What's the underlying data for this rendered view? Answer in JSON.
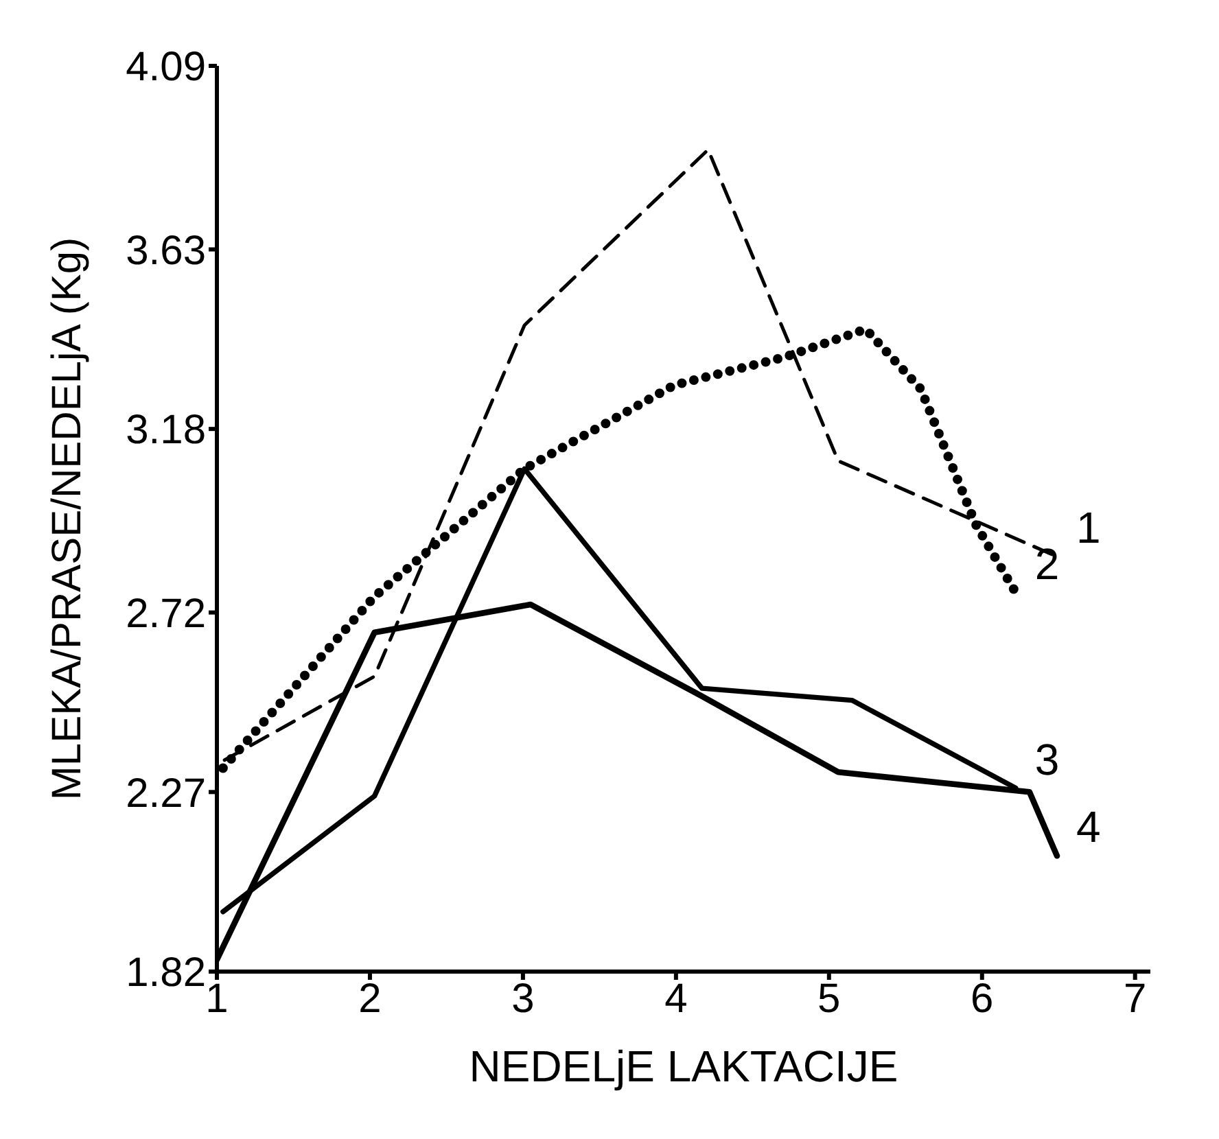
{
  "chart_data": {
    "type": "line",
    "xlabel": "NEDELjE LAKTACIJE",
    "ylabel": "MLEKA/PRASE/NEDELjA (Kg)",
    "xlim": [
      1,
      7.1
    ],
    "xticks": [
      1,
      2,
      3,
      4,
      5,
      6,
      7
    ],
    "ylim": [
      1.82,
      4.09
    ],
    "yticks": [
      1.82,
      2.27,
      2.72,
      3.18,
      3.63,
      4.09
    ],
    "marker": "none",
    "series": [
      {
        "name": "1",
        "color": "#000000",
        "line_style": "dashed",
        "x": [
          1.05,
          2.03,
          3.01,
          4.21,
          5.06,
          6.49
        ],
        "values": [
          2.35,
          2.56,
          3.44,
          3.88,
          3.1,
          2.86
        ]
      },
      {
        "name": "2",
        "color": "#000000",
        "line_style": "dotted",
        "x": [
          1.04,
          2.03,
          3.01,
          3.99,
          4.71,
          5.24,
          5.6,
          5.96,
          6.22
        ],
        "values": [
          2.33,
          2.76,
          3.08,
          3.29,
          3.36,
          3.43,
          3.28,
          2.94,
          2.77
        ]
      },
      {
        "name": "3",
        "color": "#000000",
        "line_style": "solid",
        "x": [
          1.04,
          2.03,
          3.01,
          4.17,
          5.15,
          6.22
        ],
        "values": [
          1.97,
          2.26,
          3.08,
          2.53,
          2.5,
          2.28
        ]
      },
      {
        "name": "4",
        "color": "#000000",
        "line_style": "solid",
        "x": [
          1.0,
          2.03,
          3.05,
          4.17,
          5.06,
          6.31,
          6.49
        ],
        "values": [
          1.85,
          2.67,
          2.74,
          2.51,
          2.32,
          2.27,
          2.11
        ]
      }
    ]
  }
}
